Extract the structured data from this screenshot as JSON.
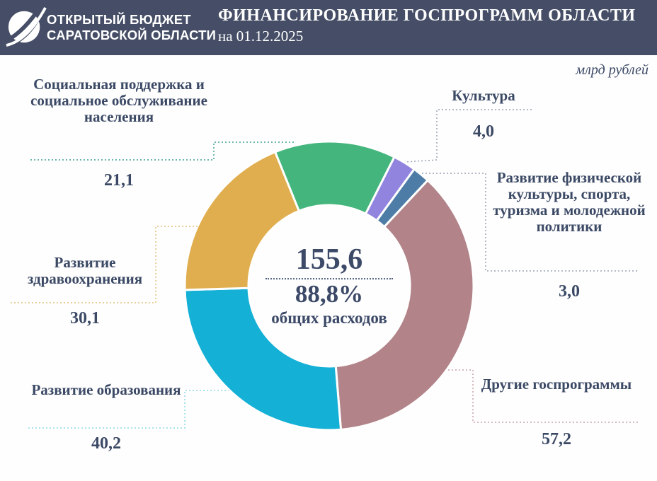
{
  "header": {
    "logo_line1": "ОТКРЫТЫЙ БЮДЖЕТ",
    "logo_line2": "САРАТОВСКОЙ ОБЛАСТИ",
    "title": "ФИНАНСИРОВАНИЕ ГОСПРОГРАММ ОБЛАСТИ",
    "date_label": "на 01.12.2025",
    "background_color": "#454e66"
  },
  "units_label": "млрд рублей",
  "chart_data": {
    "type": "pie",
    "style": "donut",
    "title": "ФИНАНСИРОВАНИЕ ГОСПРОГРАММ ОБЛАСТИ",
    "as_of_date": "01.12.2025",
    "units": "млрд рублей",
    "total": 155.6,
    "center_total": "155,6",
    "center_percent": "88,8%",
    "center_caption": "общих расходов",
    "start_angle_deg": -22,
    "legend_position": "callout-labels",
    "segments": [
      {
        "label": "Социальная поддержка и социальное обслуживание населения",
        "value": 21.1,
        "display": "21,1",
        "color": "#44b57c",
        "leader_color": "#3f9e94"
      },
      {
        "label": "Культура",
        "value": 4.0,
        "display": "4,0",
        "color": "#9084de",
        "leader_color": "#98a2b4"
      },
      {
        "label": "Развитие физической культуры, спорта, туризма и молодежной политики",
        "value": 3.0,
        "display": "3,0",
        "color": "#4d7da6",
        "leader_color": "#98a2b4"
      },
      {
        "label": "Другие госпрограммы",
        "value": 57.2,
        "display": "57,2",
        "color": "#b28389",
        "leader_color": "#c9a3a8"
      },
      {
        "label": "Развитие образования",
        "value": 40.2,
        "display": "40,2",
        "color": "#14b0d6",
        "leader_color": "#8fd8e8"
      },
      {
        "label": "Развитие здравоохранения",
        "value": 30.1,
        "display": "30,1",
        "color": "#e0ae4f",
        "leader_color": "#e0bd7a"
      }
    ]
  }
}
